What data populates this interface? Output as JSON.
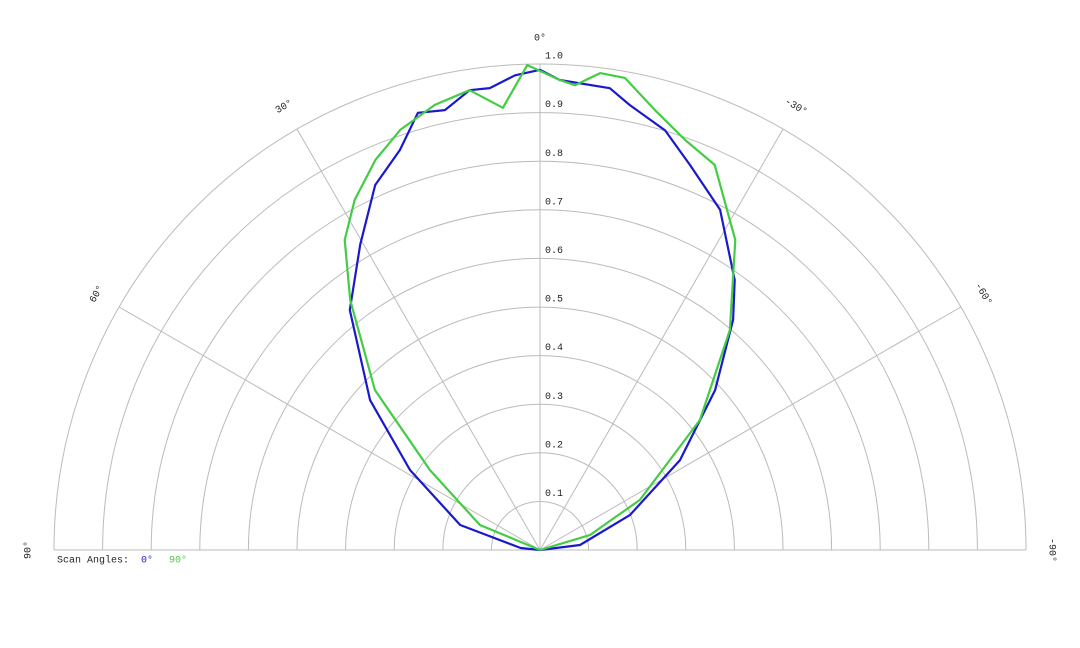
{
  "chart_data": {
    "type": "polar",
    "rlim": [
      0,
      1
    ],
    "rticks": [
      0.1,
      0.2,
      0.3,
      0.4,
      0.5,
      0.6,
      0.7,
      0.8,
      0.9,
      {
        "value": 1,
        "label": "1.0"
      }
    ],
    "thetalim": [
      90,
      -90
    ],
    "thetaticks": [
      {
        "value": 90,
        "label": "90°"
      },
      {
        "value": 60,
        "label": "60°"
      },
      {
        "value": 30,
        "label": "30°"
      },
      {
        "value": 0,
        "label": "0°"
      },
      {
        "value": -30,
        "label": "-30°"
      },
      {
        "value": -60,
        "label": "-60°"
      },
      {
        "value": -90,
        "label": "-90°"
      }
    ],
    "grid": true,
    "legend_title": "Scan Angles:",
    "series": [
      {
        "name": "0°",
        "color": "#1a1acc",
        "x": [
          90,
          84,
          72.6,
          58.4,
          48.6,
          38.4,
          30.5,
          24.3,
          19.3,
          15.6,
          12.2,
          8.7,
          6.2,
          3.0,
          0,
          -2.4,
          -8.6,
          -11.4,
          -16.6,
          -21.3,
          -27.9,
          -35.8,
          -40,
          -47.6,
          -57.3,
          -68.7,
          -82.9,
          -90
        ],
        "values": [
          0,
          0.04,
          0.172,
          0.314,
          0.466,
          0.63,
          0.729,
          0.824,
          0.872,
          0.934,
          0.926,
          0.957,
          0.956,
          0.978,
          0.988,
          0.968,
          0.961,
          0.934,
          0.901,
          0.85,
          0.792,
          0.685,
          0.618,
          0.488,
          0.342,
          0.199,
          0.083,
          0
        ]
      },
      {
        "name": "90°",
        "color": "#44cc44",
        "x": [
          90,
          67.4,
          54,
          45.9,
          37.2,
          32.2,
          27.9,
          22.9,
          18.4,
          13.3,
          8.7,
          4.8,
          1.5,
          -2.4,
          -4.3,
          -7.2,
          -10.2,
          -14.6,
          -19.5,
          -24.4,
          -32.2,
          -40.8,
          -50.9,
          -63.4,
          -73.3,
          -90
        ],
        "values": [
          0,
          0.134,
          0.28,
          0.473,
          0.646,
          0.754,
          0.815,
          0.871,
          0.911,
          0.941,
          0.957,
          0.913,
          0.998,
          0.968,
          0.959,
          0.989,
          0.987,
          0.936,
          0.895,
          0.87,
          0.754,
          0.598,
          0.424,
          0.23,
          0.107,
          0
        ]
      }
    ]
  }
}
